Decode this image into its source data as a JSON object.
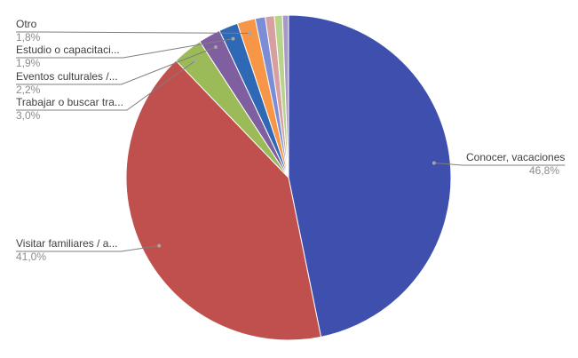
{
  "chart_data": {
    "type": "pie",
    "categories": [
      "Conocer, vacaciones",
      "Visitar familiares / a...",
      "Trabajar o buscar tra...",
      "Eventos culturales /...",
      "Estudio o capacitaci...",
      "Otro",
      null,
      null,
      null,
      null
    ],
    "values": [
      46.8,
      41.0,
      3.0,
      2.2,
      1.9,
      1.8,
      1.0,
      0.9,
      0.8,
      0.6
    ],
    "value_labels": [
      "46,8%",
      "41,0%",
      "3,0%",
      "2,2%",
      "1,9%",
      "1,8%",
      null,
      null,
      null,
      null
    ],
    "colors": [
      "#3f4fae",
      "#c0504d",
      "#9bbb59",
      "#7f5fa0",
      "#2f68b5",
      "#f79646",
      "#7b8dd6",
      "#d79fa0",
      "#b8d48c",
      "#a899c8"
    ]
  }
}
